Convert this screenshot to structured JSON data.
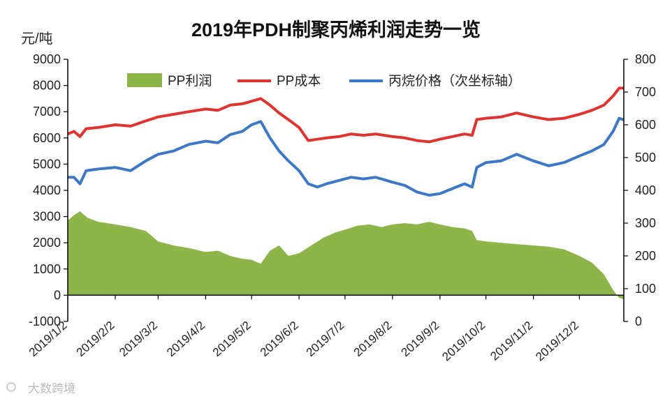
{
  "watermark": "大数跨境",
  "chart_data": {
    "type": "line",
    "title": "2019年PDH制聚丙烯利润走势一览",
    "left_unit": "元/吨",
    "y_left": {
      "min": -1000,
      "max": 9000,
      "ticks": [
        "-1000",
        "0",
        "1000",
        "2000",
        "3000",
        "4000",
        "5000",
        "6000",
        "7000",
        "8000",
        "9000"
      ]
    },
    "y_right": {
      "min": 0,
      "max": 800,
      "ticks": [
        "0",
        "100",
        "200",
        "300",
        "400",
        "500",
        "600",
        "700",
        "800"
      ]
    },
    "x_range": [
      "2019-01-02",
      "2019-12-31"
    ],
    "x_ticks": [
      {
        "label": "2019/1/2",
        "date": "2019-01-02"
      },
      {
        "label": "2019/2/2",
        "date": "2019-02-02"
      },
      {
        "label": "2019/3/2",
        "date": "2019-03-02"
      },
      {
        "label": "2019/4/2",
        "date": "2019-04-02"
      },
      {
        "label": "2019/5/2",
        "date": "2019-05-02"
      },
      {
        "label": "2019/6/2",
        "date": "2019-06-02"
      },
      {
        "label": "2019/7/2",
        "date": "2019-07-02"
      },
      {
        "label": "2019/8/2",
        "date": "2019-08-02"
      },
      {
        "label": "2019/9/2",
        "date": "2019-09-02"
      },
      {
        "label": "2019/10/2",
        "date": "2019-10-02"
      },
      {
        "label": "2019/11/2",
        "date": "2019-11-02"
      },
      {
        "label": "2019/12/2",
        "date": "2019-12-02"
      }
    ],
    "grid": false,
    "legend_position": "top",
    "series": [
      {
        "name": "PP利润",
        "type": "area",
        "axis": "left",
        "color": "#8db54a",
        "points": [
          [
            "2019-01-02",
            2850
          ],
          [
            "2019-01-06",
            3050
          ],
          [
            "2019-01-10",
            3200
          ],
          [
            "2019-01-15",
            2950
          ],
          [
            "2019-01-22",
            2800
          ],
          [
            "2019-02-02",
            2700
          ],
          [
            "2019-02-12",
            2600
          ],
          [
            "2019-02-22",
            2450
          ],
          [
            "2019-03-02",
            2050
          ],
          [
            "2019-03-12",
            1900
          ],
          [
            "2019-03-22",
            1800
          ],
          [
            "2019-04-02",
            1650
          ],
          [
            "2019-04-10",
            1700
          ],
          [
            "2019-04-18",
            1500
          ],
          [
            "2019-04-25",
            1400
          ],
          [
            "2019-05-02",
            1350
          ],
          [
            "2019-05-08",
            1200
          ],
          [
            "2019-05-14",
            1700
          ],
          [
            "2019-05-20",
            1900
          ],
          [
            "2019-05-26",
            1500
          ],
          [
            "2019-06-02",
            1600
          ],
          [
            "2019-06-10",
            1900
          ],
          [
            "2019-06-18",
            2200
          ],
          [
            "2019-06-26",
            2400
          ],
          [
            "2019-07-02",
            2500
          ],
          [
            "2019-07-10",
            2650
          ],
          [
            "2019-07-18",
            2700
          ],
          [
            "2019-07-26",
            2600
          ],
          [
            "2019-08-02",
            2700
          ],
          [
            "2019-08-10",
            2750
          ],
          [
            "2019-08-18",
            2700
          ],
          [
            "2019-08-26",
            2800
          ],
          [
            "2019-09-02",
            2700
          ],
          [
            "2019-09-10",
            2600
          ],
          [
            "2019-09-18",
            2550
          ],
          [
            "2019-09-23",
            2450
          ],
          [
            "2019-09-26",
            2100
          ],
          [
            "2019-10-02",
            2050
          ],
          [
            "2019-10-12",
            2000
          ],
          [
            "2019-10-22",
            1950
          ],
          [
            "2019-11-02",
            1900
          ],
          [
            "2019-11-12",
            1850
          ],
          [
            "2019-11-22",
            1750
          ],
          [
            "2019-12-02",
            1500
          ],
          [
            "2019-12-10",
            1250
          ],
          [
            "2019-12-18",
            800
          ],
          [
            "2019-12-24",
            200
          ],
          [
            "2019-12-28",
            -100
          ],
          [
            "2019-12-31",
            -150
          ]
        ]
      },
      {
        "name": "PP成本",
        "type": "line",
        "axis": "left",
        "color": "#e0332f",
        "points": [
          [
            "2019-01-02",
            6150
          ],
          [
            "2019-01-06",
            6250
          ],
          [
            "2019-01-10",
            6050
          ],
          [
            "2019-01-14",
            6350
          ],
          [
            "2019-01-22",
            6400
          ],
          [
            "2019-02-02",
            6500
          ],
          [
            "2019-02-12",
            6450
          ],
          [
            "2019-02-22",
            6650
          ],
          [
            "2019-03-02",
            6800
          ],
          [
            "2019-03-12",
            6900
          ],
          [
            "2019-03-22",
            7000
          ],
          [
            "2019-04-02",
            7100
          ],
          [
            "2019-04-10",
            7050
          ],
          [
            "2019-04-18",
            7250
          ],
          [
            "2019-04-26",
            7300
          ],
          [
            "2019-05-02",
            7400
          ],
          [
            "2019-05-08",
            7500
          ],
          [
            "2019-05-14",
            7250
          ],
          [
            "2019-05-20",
            6950
          ],
          [
            "2019-05-26",
            6700
          ],
          [
            "2019-06-02",
            6400
          ],
          [
            "2019-06-08",
            5900
          ],
          [
            "2019-06-14",
            5950
          ],
          [
            "2019-06-20",
            6000
          ],
          [
            "2019-06-28",
            6050
          ],
          [
            "2019-07-06",
            6150
          ],
          [
            "2019-07-14",
            6100
          ],
          [
            "2019-07-22",
            6150
          ],
          [
            "2019-08-02",
            6050
          ],
          [
            "2019-08-10",
            6000
          ],
          [
            "2019-08-18",
            5900
          ],
          [
            "2019-08-26",
            5850
          ],
          [
            "2019-09-02",
            5950
          ],
          [
            "2019-09-10",
            6050
          ],
          [
            "2019-09-18",
            6150
          ],
          [
            "2019-09-23",
            6100
          ],
          [
            "2019-09-26",
            6700
          ],
          [
            "2019-10-02",
            6750
          ],
          [
            "2019-10-12",
            6800
          ],
          [
            "2019-10-22",
            6950
          ],
          [
            "2019-11-02",
            6800
          ],
          [
            "2019-11-12",
            6700
          ],
          [
            "2019-11-22",
            6750
          ],
          [
            "2019-12-02",
            6900
          ],
          [
            "2019-12-10",
            7050
          ],
          [
            "2019-12-18",
            7250
          ],
          [
            "2019-12-24",
            7600
          ],
          [
            "2019-12-28",
            7900
          ],
          [
            "2019-12-31",
            7900
          ]
        ]
      },
      {
        "name": "丙烷价格（次坐标轴）",
        "type": "line",
        "axis": "right",
        "color": "#3c78c6",
        "points": [
          [
            "2019-01-02",
            440
          ],
          [
            "2019-01-06",
            440
          ],
          [
            "2019-01-10",
            420
          ],
          [
            "2019-01-14",
            460
          ],
          [
            "2019-01-22",
            465
          ],
          [
            "2019-02-02",
            470
          ],
          [
            "2019-02-12",
            460
          ],
          [
            "2019-02-22",
            490
          ],
          [
            "2019-03-02",
            510
          ],
          [
            "2019-03-12",
            520
          ],
          [
            "2019-03-22",
            540
          ],
          [
            "2019-04-02",
            550
          ],
          [
            "2019-04-10",
            545
          ],
          [
            "2019-04-18",
            570
          ],
          [
            "2019-04-26",
            580
          ],
          [
            "2019-05-02",
            600
          ],
          [
            "2019-05-08",
            610
          ],
          [
            "2019-05-14",
            560
          ],
          [
            "2019-05-20",
            520
          ],
          [
            "2019-05-26",
            490
          ],
          [
            "2019-06-02",
            460
          ],
          [
            "2019-06-08",
            420
          ],
          [
            "2019-06-14",
            410
          ],
          [
            "2019-06-20",
            420
          ],
          [
            "2019-06-28",
            430
          ],
          [
            "2019-07-06",
            440
          ],
          [
            "2019-07-14",
            435
          ],
          [
            "2019-07-22",
            440
          ],
          [
            "2019-08-02",
            425
          ],
          [
            "2019-08-10",
            415
          ],
          [
            "2019-08-18",
            395
          ],
          [
            "2019-08-26",
            385
          ],
          [
            "2019-09-02",
            390
          ],
          [
            "2019-09-10",
            405
          ],
          [
            "2019-09-18",
            420
          ],
          [
            "2019-09-23",
            410
          ],
          [
            "2019-09-26",
            470
          ],
          [
            "2019-10-02",
            485
          ],
          [
            "2019-10-12",
            490
          ],
          [
            "2019-10-22",
            510
          ],
          [
            "2019-11-02",
            490
          ],
          [
            "2019-11-12",
            475
          ],
          [
            "2019-11-22",
            485
          ],
          [
            "2019-12-02",
            505
          ],
          [
            "2019-12-10",
            520
          ],
          [
            "2019-12-18",
            540
          ],
          [
            "2019-12-24",
            580
          ],
          [
            "2019-12-28",
            620
          ],
          [
            "2019-12-31",
            615
          ]
        ]
      }
    ]
  }
}
